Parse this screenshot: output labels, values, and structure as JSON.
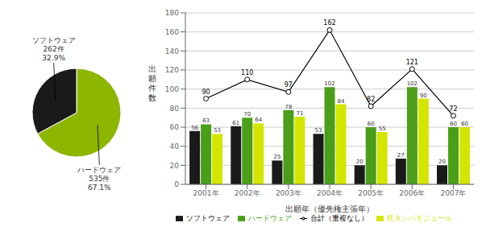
{
  "chart_data": [
    {
      "type": "pie",
      "values": [
        67.1,
        32.9
      ],
      "colors": [
        "#8db600",
        "#1a1a1a"
      ],
      "value_labels": [
        "ハードウェア\n535件\n67.1%",
        "ソフトウェア\n262件\n32.9%"
      ]
    },
    {
      "type": "bar",
      "xlabel": "出願年（優先権主張年）",
      "ylabel": "出\n願\n件\n数",
      "categories": [
        "2001年",
        "2002年",
        "2003年",
        "2004年",
        "2005年",
        "2006年",
        "2007年"
      ],
      "ylim": [
        0,
        180
      ],
      "yticks": [
        0,
        20,
        40,
        60,
        80,
        100,
        120,
        140,
        160,
        180
      ],
      "grid": true,
      "data_labels": true,
      "legend": "bottom",
      "series": [
        {
          "name": "ソフトウェア",
          "color": "#1a1a1a",
          "values": [
            56,
            61,
            25,
            53,
            20,
            27,
            20
          ]
        },
        {
          "name": "ハードウェア",
          "color": "#4a9e1a",
          "values": [
            63,
            70,
            78,
            102,
            60,
            102,
            60
          ]
        },
        {
          "name": "耗タンパモジュール",
          "color": "#d4e600",
          "values": [
            53,
            64,
            71,
            84,
            55,
            90,
            60
          ]
        },
        {
          "name": "合計（重複なし）",
          "type": "line",
          "color": "#000000",
          "marker": "circle",
          "values": [
            90,
            110,
            97,
            162,
            82,
            121,
            72
          ]
        }
      ]
    }
  ]
}
